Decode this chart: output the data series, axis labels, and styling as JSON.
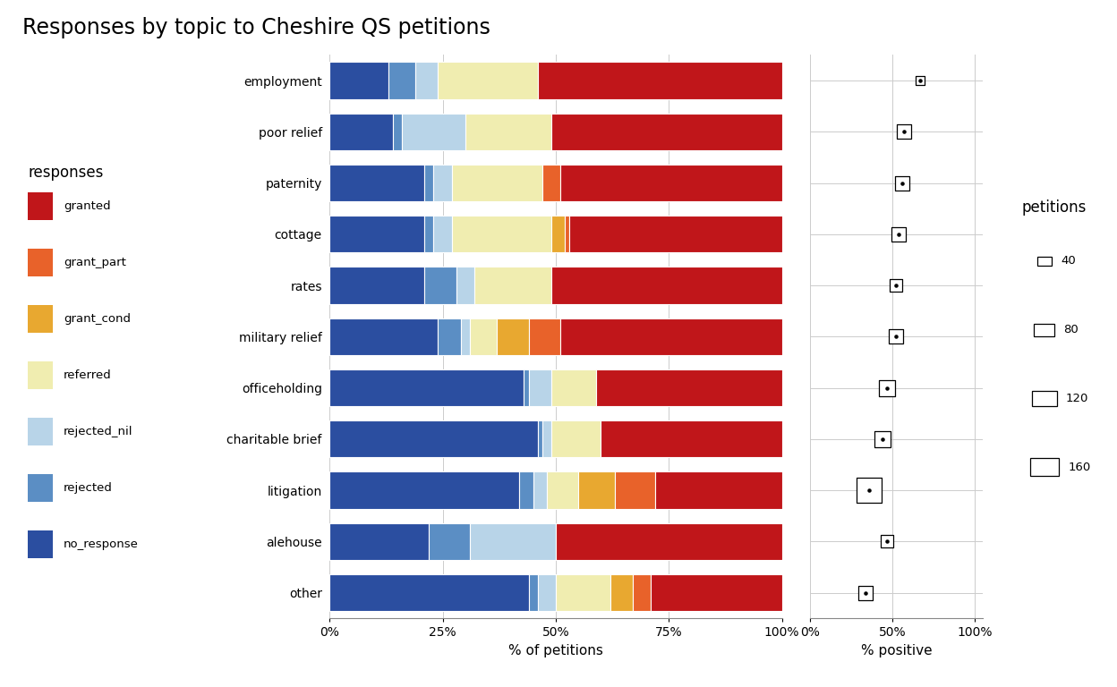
{
  "title": "Responses by topic to Cheshire QS petitions",
  "topics": [
    "employment",
    "poor relief",
    "paternity",
    "cottage",
    "rates",
    "military relief",
    "officeholding",
    "charitable brief",
    "litigation",
    "alehouse",
    "other"
  ],
  "response_categories": [
    "no_response",
    "rejected",
    "rejected_nil",
    "referred",
    "grant_cond",
    "grant_part",
    "granted"
  ],
  "colors": {
    "no_response": "#2b4ea0",
    "rejected": "#5b8ec4",
    "rejected_nil": "#b8d4e8",
    "referred": "#f0edb0",
    "grant_cond": "#e8a830",
    "grant_part": "#e8622a",
    "granted": "#c0161a"
  },
  "stacked_data": {
    "employment": [
      0.13,
      0.06,
      0.05,
      0.22,
      0.0,
      0.0,
      0.54
    ],
    "poor relief": [
      0.14,
      0.02,
      0.14,
      0.19,
      0.0,
      0.0,
      0.51
    ],
    "paternity": [
      0.21,
      0.02,
      0.04,
      0.2,
      0.0,
      0.04,
      0.49
    ],
    "cottage": [
      0.21,
      0.02,
      0.04,
      0.22,
      0.03,
      0.01,
      0.47
    ],
    "rates": [
      0.21,
      0.07,
      0.04,
      0.17,
      0.0,
      0.0,
      0.51
    ],
    "military relief": [
      0.24,
      0.05,
      0.02,
      0.06,
      0.07,
      0.07,
      0.49
    ],
    "officeholding": [
      0.43,
      0.01,
      0.05,
      0.1,
      0.0,
      0.0,
      0.41
    ],
    "charitable brief": [
      0.46,
      0.01,
      0.02,
      0.11,
      0.0,
      0.0,
      0.4
    ],
    "litigation": [
      0.42,
      0.03,
      0.03,
      0.07,
      0.08,
      0.09,
      0.28
    ],
    "alehouse": [
      0.22,
      0.09,
      0.19,
      0.0,
      0.0,
      0.0,
      0.5
    ],
    "other": [
      0.44,
      0.02,
      0.04,
      0.12,
      0.05,
      0.04,
      0.29
    ]
  },
  "pct_positive": {
    "employment": 0.67,
    "poor relief": 0.57,
    "paternity": 0.56,
    "cottage": 0.54,
    "rates": 0.52,
    "military relief": 0.52,
    "officeholding": 0.47,
    "charitable brief": 0.44,
    "litigation": 0.36,
    "alehouse": 0.47,
    "other": 0.34
  },
  "n_petitions": {
    "employment": 18,
    "poor relief": 52,
    "paternity": 48,
    "cottage": 58,
    "rates": 42,
    "military relief": 48,
    "officeholding": 68,
    "charitable brief": 62,
    "litigation": 165,
    "alehouse": 42,
    "other": 52
  },
  "legend_sizes": [
    40,
    80,
    120,
    160
  ],
  "bar_xlabel": "% of petitions",
  "bubble_xlabel": "% positive"
}
